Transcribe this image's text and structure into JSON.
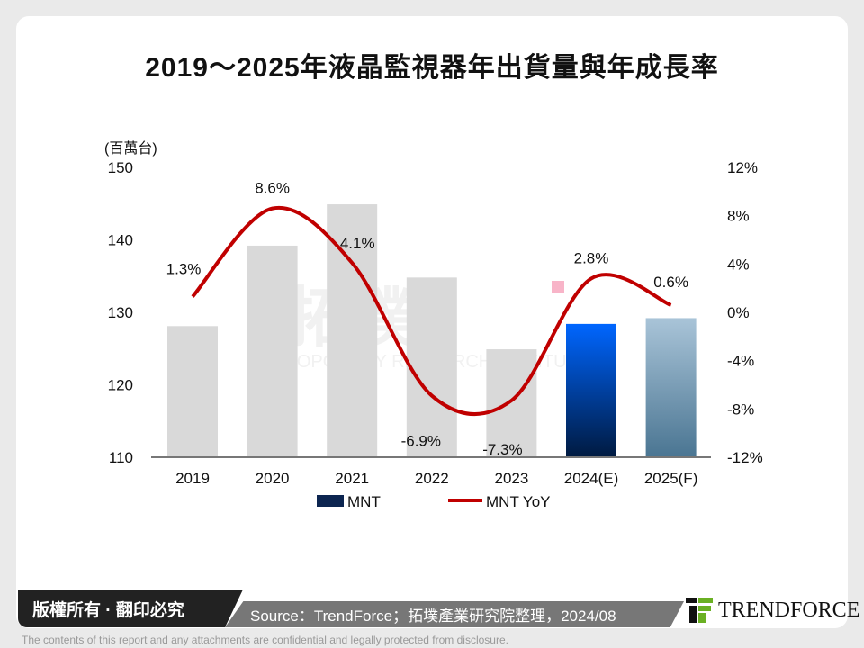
{
  "title": "2019～2025年液晶監視器年出貨量與年成長率",
  "chart_data": {
    "type": "bar+line",
    "title": "2019～2025年液晶監視器年出貨量與年成長率",
    "ylabel": "(百萬台)",
    "categories": [
      "2019",
      "2020",
      "2021",
      "2022",
      "2023",
      "2024(E)",
      "2025(F)"
    ],
    "ylim": [
      110,
      150
    ],
    "yticks": [
      "150",
      "140",
      "130",
      "120",
      "110"
    ],
    "y2lim": [
      -12,
      12
    ],
    "y2ticks": [
      "12%",
      "8%",
      "4%",
      "0%",
      "-4%",
      "-8%",
      "-12%"
    ],
    "series": [
      {
        "name": "MNT",
        "type": "bar",
        "values": [
          128.1,
          139.2,
          144.9,
          134.8,
          124.9,
          128.4,
          129.2
        ]
      },
      {
        "name": "MNT YoY",
        "type": "line",
        "axis": "right",
        "values": [
          1.3,
          8.6,
          4.1,
          -6.9,
          -7.3,
          2.8,
          0.6
        ],
        "labels": [
          "1.3%",
          "8.6%",
          "4.1%",
          "-6.9%",
          "-7.3%",
          "2.8%",
          "0.6%"
        ]
      }
    ],
    "legend_position": "bottom",
    "grid": false,
    "colors": {
      "bar_historic": "#d9d9d9",
      "bar_2024": "#0066ff",
      "bar_2024_bottom": "#001a40",
      "bar_2025": "#a9c4d8",
      "bar_2025_bottom": "#4a7592",
      "line": "#c00000"
    }
  },
  "watermark": "拓墣 TOPOLOGY RESEARCH INSTITUTE",
  "footer": {
    "copyright": "版權所有 · 翻印必究",
    "source": "Source：TrendForce；拓墣產業研究院整理，2024/08",
    "logo": "TRENDFORCE",
    "disclaimer": "The contents of this report and any attachments are confidential and legally protected from disclosure."
  }
}
